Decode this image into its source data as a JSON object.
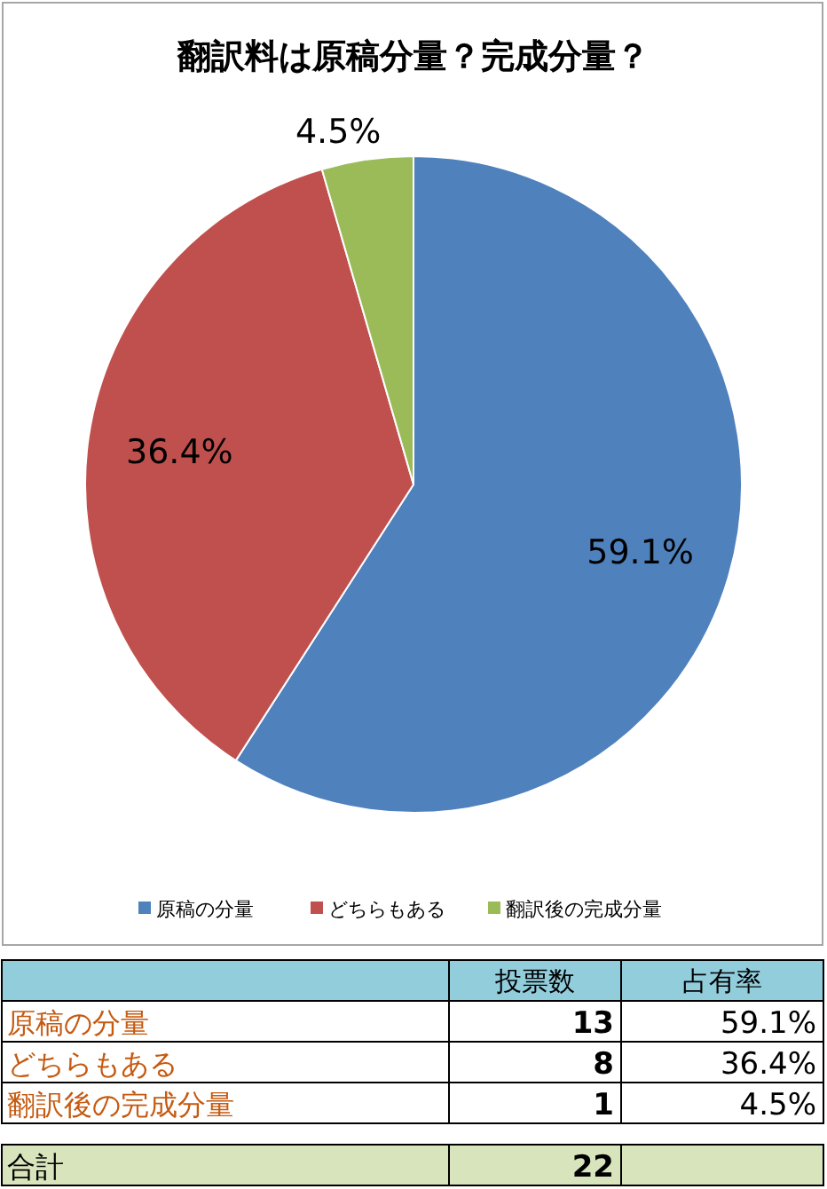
{
  "chart_data": [
    {
      "type": "pie",
      "title": "翻訳料は原稿分量？完成分量？",
      "categories": [
        "原稿の分量",
        "どちらもある",
        "翻訳後の完成分量"
      ],
      "values": [
        59.1,
        36.4,
        4.5
      ],
      "value_labels": [
        "59.1%",
        "36.4%",
        "4.5%"
      ],
      "colors": [
        "#4f81bd",
        "#c0504d",
        "#9bbb59"
      ],
      "legend": "bottom"
    },
    {
      "type": "other",
      "categories": [
        "原稿の分量",
        "どちらもある",
        "翻訳後の完成分量"
      ],
      "values": [
        13,
        8,
        1
      ],
      "data_labels": true,
      "annotations": [
        "投票数",
        "占有率",
        "合計"
      ],
      "totals": [
        "22"
      ]
    }
  ]
}
